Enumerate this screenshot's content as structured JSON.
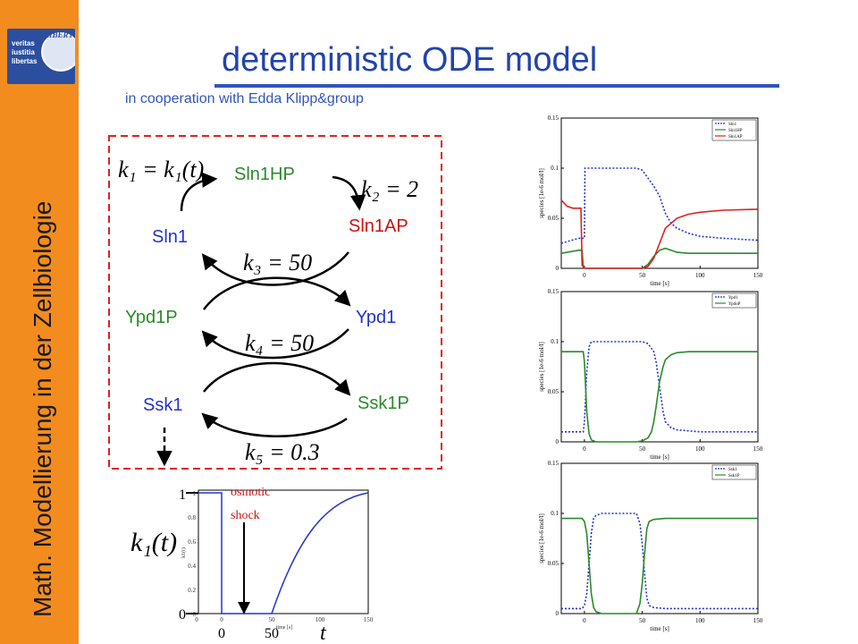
{
  "sidebar": {
    "logo_text_lines": [
      "veritas",
      "iustitia",
      "libertas"
    ],
    "logo_seal_text": "LIBERT",
    "vertical_title": "Math. Modellierung in der Zellbiologie"
  },
  "header": {
    "title": "deterministic ODE model",
    "subtitle": "in cooperation with Edda Klipp&group"
  },
  "scheme": {
    "species": {
      "sln1hp": "Sln1HP",
      "sln1": "Sln1",
      "sln1ap": "Sln1AP",
      "ypd1p": "Ypd1P",
      "ypd1": "Ypd1",
      "ssk1": "Ssk1",
      "ssk1p": "Ssk1P"
    },
    "rates": {
      "k1": "k₁ = k₁(t)",
      "k2": "k₂ = 2",
      "k3": "k₃ = 50",
      "k4": "k₄ = 50",
      "k5": "k₅ = 0.3"
    },
    "colors": {
      "blue": "#2233cc",
      "green": "#2a8a2a",
      "red": "#cc1111",
      "box": "#e02020"
    }
  },
  "input_plot": {
    "y_tick_1": "1",
    "y_tick_0": "0",
    "x_tick_0": "0",
    "x_tick_50": "50",
    "x_var": "t",
    "ylabel": "k₁(t)",
    "annotation": [
      "osmotic",
      "shock"
    ],
    "inner_x_ticks": [
      "0",
      "0",
      "50",
      "100",
      "150"
    ],
    "inner_y_ticks": [
      "0",
      "0.2",
      "0.4",
      "0.6",
      "0.8",
      "1"
    ],
    "inner_xlabel": "time [s]",
    "inner_ylabel": "k1(t)"
  },
  "chart_data": [
    {
      "type": "line",
      "title": "",
      "xlabel": "time [s]",
      "ylabel": "species [1e-6 mol/l]",
      "xlim": [
        -20,
        150
      ],
      "ylim": [
        0,
        0.15
      ],
      "x_ticks": [
        0,
        50,
        100,
        150
      ],
      "y_ticks": [
        0,
        0.05,
        0.1,
        0.15
      ],
      "y_tick_labels": [
        "0",
        "0.05",
        "0.1",
        "0.15"
      ],
      "legend_position": "top-right",
      "series": [
        {
          "name": "Sln1",
          "color": "#2233cc",
          "dash": true,
          "x": [
            -20,
            -5,
            -2,
            0,
            0.5,
            40,
            45,
            50,
            55,
            60,
            65,
            70,
            75,
            80,
            90,
            100,
            120,
            150
          ],
          "y": [
            0.025,
            0.03,
            0.03,
            0.03,
            0.1,
            0.1,
            0.1,
            0.098,
            0.09,
            0.082,
            0.072,
            0.055,
            0.045,
            0.04,
            0.035,
            0.032,
            0.03,
            0.028
          ]
        },
        {
          "name": "Sln1HP",
          "color": "#2a8a2a",
          "dash": false,
          "x": [
            -20,
            -5,
            -2,
            -1,
            0,
            50,
            55,
            60,
            65,
            70,
            75,
            80,
            90,
            100,
            120,
            150
          ],
          "y": [
            0.015,
            0.018,
            0.018,
            0.002,
            0,
            0,
            0.004,
            0.012,
            0.018,
            0.02,
            0.018,
            0.016,
            0.015,
            0.015,
            0.015,
            0.015
          ]
        },
        {
          "name": "Sln1AP",
          "color": "#dd2222",
          "dash": false,
          "x": [
            -20,
            -15,
            -10,
            -5,
            -3,
            -2,
            0,
            50,
            55,
            60,
            65,
            70,
            80,
            90,
            100,
            120,
            150
          ],
          "y": [
            0.068,
            0.062,
            0.06,
            0.06,
            0.06,
            0.003,
            0,
            0,
            0.002,
            0.01,
            0.025,
            0.04,
            0.05,
            0.054,
            0.056,
            0.058,
            0.059
          ]
        }
      ]
    },
    {
      "type": "line",
      "title": "",
      "xlabel": "time [s]",
      "ylabel": "species [1e-6 mol/l]",
      "xlim": [
        -20,
        150
      ],
      "ylim": [
        0,
        0.15
      ],
      "x_ticks": [
        0,
        50,
        100,
        150
      ],
      "y_ticks": [
        0,
        0.05,
        0.1,
        0.15
      ],
      "y_tick_labels": [
        "0",
        "0.05",
        "0.1",
        "0.15"
      ],
      "legend_position": "top-right",
      "series": [
        {
          "name": "Ypd1",
          "color": "#2233cc",
          "dash": true,
          "x": [
            -20,
            -3,
            -1,
            0,
            2,
            4,
            6,
            45,
            50,
            55,
            60,
            62,
            65,
            68,
            70,
            75,
            80,
            90,
            100,
            120,
            150
          ],
          "y": [
            0.01,
            0.01,
            0.01,
            0.02,
            0.07,
            0.095,
            0.1,
            0.1,
            0.1,
            0.098,
            0.09,
            0.08,
            0.055,
            0.03,
            0.02,
            0.014,
            0.012,
            0.011,
            0.01,
            0.01,
            0.01
          ]
        },
        {
          "name": "YpdoP",
          "color": "#2a8a2a",
          "dash": false,
          "x": [
            -20,
            -3,
            -1,
            0,
            2,
            4,
            6,
            10,
            45,
            50,
            55,
            58,
            60,
            62,
            65,
            68,
            70,
            75,
            80,
            90,
            100,
            120,
            150
          ],
          "y": [
            0.09,
            0.09,
            0.09,
            0.08,
            0.03,
            0.008,
            0.002,
            0,
            0,
            0.001,
            0.004,
            0.01,
            0.02,
            0.035,
            0.06,
            0.075,
            0.082,
            0.087,
            0.089,
            0.09,
            0.09,
            0.09,
            0.09
          ]
        }
      ]
    },
    {
      "type": "line",
      "title": "",
      "xlabel": "time [s]",
      "ylabel": "species [1e-6 mol/l]",
      "xlim": [
        -20,
        150
      ],
      "ylim": [
        0,
        0.15
      ],
      "x_ticks": [
        0,
        50,
        100,
        150
      ],
      "y_ticks": [
        0,
        0.05,
        0.1,
        0.15
      ],
      "y_tick_labels": [
        "0",
        "0.05",
        "0.1",
        "0.15"
      ],
      "legend_position": "top-right",
      "series": [
        {
          "name": "Ssk1",
          "color": "#2233cc",
          "dash": true,
          "x": [
            -20,
            -2,
            0,
            2,
            4,
            6,
            8,
            10,
            15,
            40,
            45,
            48,
            50,
            52,
            54,
            56,
            60,
            70,
            100,
            150
          ],
          "y": [
            0.005,
            0.005,
            0.008,
            0.02,
            0.05,
            0.08,
            0.095,
            0.098,
            0.1,
            0.1,
            0.1,
            0.09,
            0.07,
            0.04,
            0.015,
            0.008,
            0.006,
            0.005,
            0.005,
            0.005
          ]
        },
        {
          "name": "Ssk1P",
          "color": "#2a8a2a",
          "dash": false,
          "x": [
            -20,
            -2,
            0,
            2,
            4,
            6,
            8,
            10,
            15,
            40,
            45,
            48,
            50,
            52,
            54,
            56,
            60,
            70,
            100,
            150
          ],
          "y": [
            0.095,
            0.095,
            0.092,
            0.08,
            0.05,
            0.02,
            0.006,
            0.002,
            0,
            0,
            0,
            0.01,
            0.03,
            0.06,
            0.085,
            0.092,
            0.094,
            0.095,
            0.095,
            0.095
          ]
        }
      ]
    }
  ]
}
